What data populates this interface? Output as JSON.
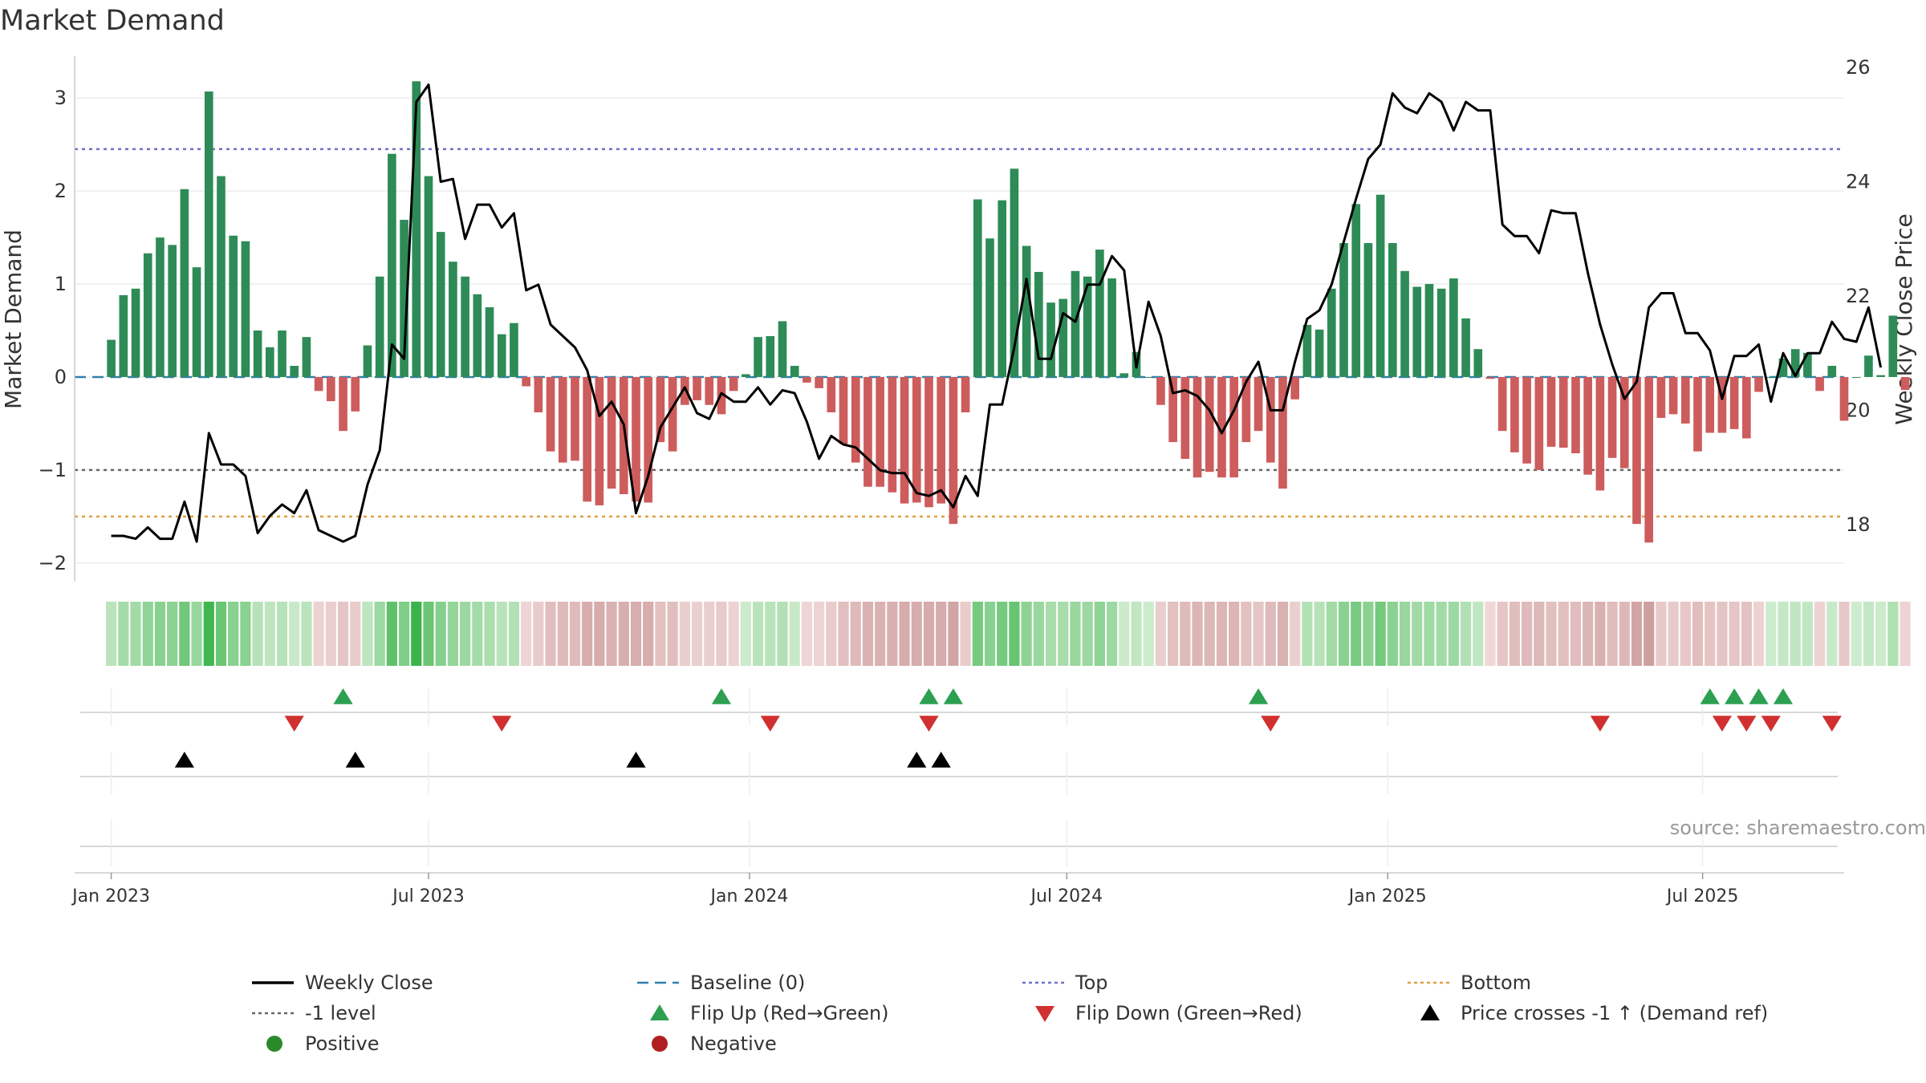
{
  "chart_data": {
    "type": "bar",
    "title": "Market Demand",
    "ylabel_left": "Market Demand",
    "ylabel_right": "Weekly Close Price",
    "ylim_left": [
      -2.2,
      3.45
    ],
    "ylim_right": [
      17.0,
      26.2
    ],
    "left_ticks": [
      -2,
      -1,
      0,
      1,
      2,
      3
    ],
    "left_tick_labels": [
      "−2",
      "−1",
      "0",
      "1",
      "2",
      "3"
    ],
    "right_ticks": [
      18,
      20,
      22,
      24,
      26
    ],
    "right_tick_labels": [
      "18",
      "20",
      "22",
      "24",
      "26"
    ],
    "x_range_weeks": [
      -3,
      142
    ],
    "x_ticks": [
      {
        "label": "Jan 2023",
        "week": 0
      },
      {
        "label": "Jul 2023",
        "week": 26
      },
      {
        "label": "Jan 2024",
        "week": 52.3
      },
      {
        "label": "Jul 2024",
        "week": 78.3
      },
      {
        "label": "Jan 2025",
        "week": 104.6
      },
      {
        "label": "Jul 2025",
        "week": 130.4
      }
    ],
    "reference_lines": [
      {
        "name": "Top",
        "value": 2.45,
        "color": "#7070c8"
      },
      {
        "name": "-1 level",
        "value": -1.0,
        "color": "#666666"
      },
      {
        "name": "Bottom",
        "value": -1.5,
        "color": "#e0a040"
      },
      {
        "name": "Baseline (0)",
        "value": 0.0,
        "color": "#3080b0"
      }
    ],
    "demand": [
      0.4,
      0.88,
      0.95,
      1.33,
      1.5,
      1.42,
      2.02,
      1.18,
      3.07,
      2.16,
      1.52,
      1.46,
      0.5,
      0.32,
      0.5,
      0.12,
      0.43,
      -0.15,
      -0.26,
      -0.58,
      -0.37,
      0.34,
      1.08,
      2.4,
      1.69,
      3.18,
      2.16,
      1.56,
      1.24,
      1.08,
      0.89,
      0.75,
      0.46,
      0.58,
      -0.1,
      -0.38,
      -0.8,
      -0.92,
      -0.9,
      -1.34,
      -1.38,
      -1.2,
      -1.26,
      -1.34,
      -1.35,
      -0.7,
      -0.8,
      -0.3,
      -0.25,
      -0.3,
      -0.4,
      -0.15,
      0.03,
      0.43,
      0.44,
      0.6,
      0.12,
      -0.06,
      -0.12,
      -0.38,
      -0.72,
      -0.92,
      -1.18,
      -1.18,
      -1.24,
      -1.36,
      -1.35,
      -1.4,
      -1.36,
      -1.58,
      -0.38,
      1.91,
      1.49,
      1.9,
      2.24,
      1.41,
      1.13,
      0.8,
      0.84,
      1.14,
      1.08,
      1.37,
      1.06,
      0.04,
      0.27,
      0.0,
      -0.3,
      -0.7,
      -0.88,
      -1.08,
      -1.02,
      -1.08,
      -1.08,
      -0.7,
      -0.58,
      -0.92,
      -1.2,
      -0.24,
      0.56,
      0.51,
      0.95,
      1.44,
      1.86,
      1.44,
      1.96,
      1.44,
      1.14,
      0.97,
      1.0,
      0.95,
      1.06,
      0.63,
      0.3,
      -0.02,
      -0.58,
      -0.81,
      -0.93,
      -1.0,
      -0.75,
      -0.76,
      -0.82,
      -1.05,
      -1.22,
      -0.87,
      -0.98,
      -1.58,
      -1.78,
      -0.44,
      -0.4,
      -0.5,
      -0.8,
      -0.6,
      -0.6,
      -0.56,
      -0.66,
      -0.16,
      0.0,
      0.2,
      0.3,
      0.26,
      -0.15,
      0.12,
      -0.47,
      0.0,
      0.23,
      0.02,
      0.66,
      -0.14
    ],
    "weekly_close": [
      17.8,
      17.8,
      17.75,
      17.95,
      17.75,
      17.75,
      18.4,
      17.7,
      19.6,
      19.05,
      19.05,
      18.85,
      17.85,
      18.15,
      18.35,
      18.2,
      18.6,
      17.9,
      17.8,
      17.7,
      17.8,
      18.7,
      19.3,
      21.15,
      20.9,
      25.4,
      25.7,
      24.0,
      24.05,
      23.0,
      23.6,
      23.6,
      23.2,
      23.45,
      22.1,
      22.2,
      21.5,
      21.3,
      21.1,
      20.7,
      19.9,
      20.15,
      19.75,
      18.2,
      18.85,
      19.7,
      20.05,
      20.4,
      19.95,
      19.85,
      20.3,
      20.15,
      20.15,
      20.4,
      20.1,
      20.35,
      20.3,
      19.8,
      19.15,
      19.55,
      19.4,
      19.35,
      19.15,
      18.95,
      18.9,
      18.9,
      18.55,
      18.5,
      18.6,
      18.3,
      18.85,
      18.5,
      20.1,
      20.1,
      21.1,
      22.3,
      20.9,
      20.9,
      21.7,
      21.55,
      22.2,
      22.2,
      22.7,
      22.45,
      20.75,
      21.9,
      21.3,
      20.3,
      20.35,
      20.25,
      20.0,
      19.6,
      20.0,
      20.5,
      20.85,
      20.0,
      20.0,
      20.85,
      21.6,
      21.75,
      22.2,
      22.95,
      23.7,
      24.4,
      24.65,
      25.55,
      25.3,
      25.2,
      25.55,
      25.4,
      24.9,
      25.4,
      25.25,
      25.25,
      23.25,
      23.05,
      23.05,
      22.75,
      23.5,
      23.45,
      23.45,
      22.4,
      21.5,
      20.8,
      20.2,
      20.5,
      21.8,
      22.05,
      22.05,
      21.35,
      21.35,
      21.05,
      20.2,
      20.95,
      20.95,
      21.15,
      20.15,
      21.0,
      20.6,
      21.0,
      21.0,
      21.55,
      21.25,
      21.2,
      21.8,
      20.75
    ],
    "flip_up_weeks": [
      19,
      50,
      67,
      69,
      94,
      131,
      133,
      135,
      137
    ],
    "flip_down_weeks": [
      15,
      32,
      54,
      67,
      95,
      122,
      132,
      134,
      136,
      141
    ],
    "price_cross_weeks": [
      6,
      20,
      43,
      66,
      68
    ],
    "legend": [
      {
        "label": "Weekly Close",
        "marker": "line-solid",
        "color": "#000000"
      },
      {
        "label": "Baseline (0)",
        "marker": "line-dash",
        "color": "#3080b0"
      },
      {
        "label": "Top",
        "marker": "line-dot",
        "color": "#7070c8"
      },
      {
        "label": "Bottom",
        "marker": "line-dot",
        "color": "#e0a040"
      },
      {
        "label": "-1 level",
        "marker": "line-dot",
        "color": "#666666"
      },
      {
        "label": "Flip Up (Red→Green)",
        "marker": "triangle-up",
        "color": "#2ca050"
      },
      {
        "label": "Flip Down (Green→Red)",
        "marker": "triangle-down",
        "color": "#d03030"
      },
      {
        "label": "Price crosses -1 ↑ (Demand ref)",
        "marker": "triangle-up",
        "color": "#000000"
      },
      {
        "label": "Positive",
        "marker": "circle",
        "color": "#2a8a2a"
      },
      {
        "label": "Negative",
        "marker": "circle",
        "color": "#b02020"
      }
    ],
    "colors": {
      "positive_bar": "#2e8b57",
      "negative_bar": "#cd5c5c",
      "price_line": "#000000"
    }
  },
  "source": "source: sharemaestro.com"
}
